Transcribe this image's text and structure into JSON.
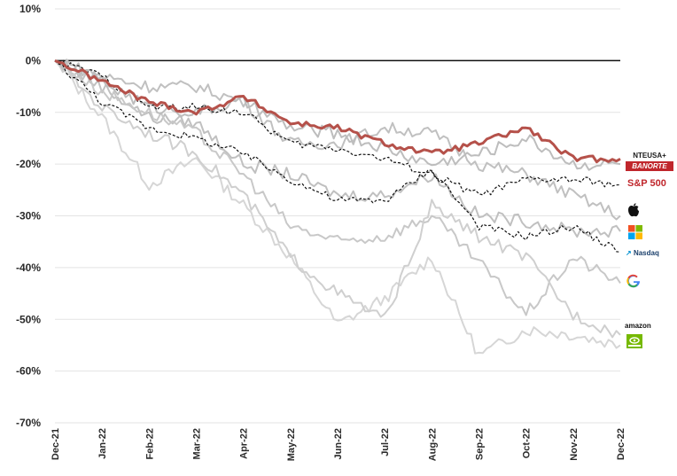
{
  "chart_data": {
    "type": "line",
    "title": "",
    "xlabel": "",
    "ylabel": "",
    "ylim": [
      -70,
      10
    ],
    "y_ticks": [
      "10%",
      "0%",
      "-10%",
      "-20%",
      "-30%",
      "-40%",
      "-50%",
      "-60%",
      "-70%"
    ],
    "y_tick_values": [
      10,
      0,
      -10,
      -20,
      -30,
      -40,
      -50,
      -60,
      -70
    ],
    "x_ticks": [
      "Dec-21",
      "Jan-22",
      "Feb-22",
      "Mar-22",
      "Apr-22",
      "May-22",
      "Jun-22",
      "Jul-22",
      "Aug-22",
      "Sep-22",
      "Oct-22",
      "Nov-22",
      "Dec-22"
    ],
    "zero_line": 0,
    "grid": "horizontal",
    "series": [
      {
        "style": "red-thick",
        "color": "#b5514a",
        "values": [
          0,
          -4,
          -8,
          -10,
          -7,
          -12,
          -13,
          -16,
          -18,
          -16,
          -13,
          -19,
          -19
        ]
      },
      {
        "style": "gray-light",
        "color": "#bdbdbd",
        "values": [
          0,
          -4,
          -9,
          -10,
          -8,
          -13,
          -14,
          -17,
          -20,
          -18,
          -15,
          -20,
          -20
        ]
      },
      {
        "style": "black-dash",
        "color": "#111111",
        "values": [
          0,
          -3,
          -9,
          -9,
          -10,
          -16,
          -17,
          -19,
          -22,
          -26,
          -23,
          -23,
          -24
        ]
      },
      {
        "style": "black-dash",
        "color": "#111111",
        "values": [
          0,
          -8,
          -13,
          -15,
          -18,
          -23,
          -27,
          -27,
          -21,
          -32,
          -34,
          -32,
          -37
        ]
      },
      {
        "style": "gray",
        "color": "#c0c0c0",
        "values": [
          0,
          -3,
          -5,
          -5,
          -8,
          -16,
          -16,
          -13,
          -14,
          -20,
          -22,
          -26,
          -30
        ]
      },
      {
        "style": "gray",
        "color": "#c0c0c0",
        "values": [
          0,
          -5,
          -11,
          -12,
          -20,
          -22,
          -26,
          -26,
          -22,
          -30,
          -31,
          -33,
          -33
        ]
      },
      {
        "style": "gray",
        "color": "#c8c8c8",
        "values": [
          0,
          -6,
          -10,
          -14,
          -22,
          -32,
          -35,
          -34,
          -30,
          -39,
          -49,
          -38,
          -43
        ]
      },
      {
        "style": "gray",
        "color": "#cfcfcf",
        "values": [
          0,
          -9,
          -14,
          -18,
          -26,
          -38,
          -45,
          -50,
          -28,
          -34,
          -38,
          -49,
          -53
        ]
      },
      {
        "style": "gray-faint",
        "color": "#d6d6d6",
        "values": [
          0,
          -11,
          -24,
          -19,
          -28,
          -38,
          -51,
          -46,
          -38,
          -57,
          -52,
          -53,
          -55
        ]
      }
    ],
    "legend": "right-side logo column"
  },
  "legend_labels": {
    "nteusa": "NTEUSA+",
    "banorte": "BANORTE",
    "sp500": "S&P 500",
    "nasdaq": "Nasdaq",
    "amazon": "amazon"
  },
  "logo_icons": [
    "apple-icon",
    "microsoft-icon",
    "google-icon",
    "nvidia-icon"
  ]
}
